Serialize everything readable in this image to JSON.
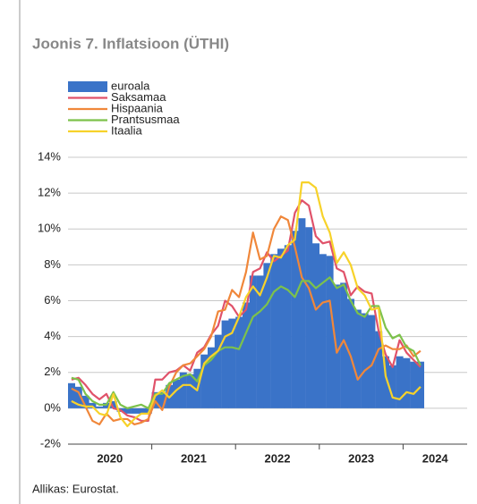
{
  "chart_data": {
    "type": "bar_line",
    "title": "Joonis 7. Inflatsioon (ÜTHI)",
    "source": "Allikas: Eurostat.",
    "xaxis_labels": [
      "2020",
      "2021",
      "2022",
      "2023",
      "2024"
    ],
    "categories": [
      null,
      null,
      null,
      null,
      null,
      null,
      null,
      null,
      null,
      null,
      null,
      null,
      null,
      null,
      null,
      null,
      null,
      null,
      null,
      null,
      null,
      null,
      null,
      null,
      null,
      null,
      null,
      null,
      null,
      null,
      null,
      null,
      null,
      null,
      null,
      null,
      null,
      null,
      null,
      null,
      null,
      null,
      null,
      null,
      null,
      null,
      null,
      null,
      null,
      null,
      null
    ],
    "series": [
      {
        "name": "euroala",
        "kind": "bar",
        "color": "#3a73c8",
        "values": [
          1.4,
          1.2,
          0.7,
          0.3,
          0.1,
          0.3,
          0.4,
          -0.2,
          -0.3,
          -0.3,
          -0.3,
          -0.3,
          0.9,
          0.9,
          1.3,
          1.6,
          2.0,
          1.9,
          2.2,
          3.0,
          3.4,
          4.1,
          4.9,
          5.0,
          5.1,
          5.9,
          7.4,
          7.4,
          8.1,
          8.6,
          8.9,
          9.1,
          9.9,
          10.6,
          10.1,
          9.2,
          8.6,
          8.5,
          6.9,
          7.0,
          6.1,
          5.5,
          5.3,
          5.2,
          4.3,
          2.9,
          2.4,
          2.9,
          2.8,
          2.6,
          2.6
        ]
      },
      {
        "name": "Saksamaa",
        "kind": "line",
        "color": "#e0526a",
        "values": [
          1.6,
          1.7,
          1.3,
          0.8,
          0.5,
          0.8,
          0.0,
          -0.1,
          -0.4,
          -0.5,
          -0.7,
          -0.7,
          1.6,
          1.6,
          2.0,
          2.1,
          2.4,
          2.1,
          3.1,
          3.4,
          4.1,
          4.6,
          6.0,
          5.7,
          5.1,
          5.5,
          7.6,
          7.8,
          8.7,
          8.2,
          8.5,
          8.8,
          10.9,
          11.6,
          11.3,
          9.6,
          9.2,
          9.3,
          7.8,
          7.6,
          6.3,
          6.8,
          6.5,
          6.4,
          4.3,
          3.0,
          2.3,
          3.8,
          3.1,
          2.7,
          2.3
        ]
      },
      {
        "name": "Hispaania",
        "kind": "line",
        "color": "#f0873a",
        "values": [
          1.1,
          0.9,
          0.1,
          -0.7,
          -0.9,
          -0.3,
          -0.7,
          -0.6,
          -0.6,
          -0.9,
          -0.8,
          -0.6,
          0.4,
          -0.1,
          1.2,
          2.0,
          2.4,
          2.5,
          2.9,
          3.3,
          4.0,
          5.4,
          5.5,
          6.6,
          6.2,
          7.6,
          9.8,
          8.3,
          8.5,
          10.0,
          10.7,
          10.5,
          9.0,
          7.3,
          6.7,
          5.5,
          5.9,
          6.0,
          3.1,
          3.8,
          2.9,
          1.6,
          2.1,
          2.4,
          3.3,
          3.5,
          3.3,
          3.3,
          3.5,
          2.9,
          3.2
        ]
      },
      {
        "name": "Prantsusmaa",
        "kind": "line",
        "color": "#7dc24b",
        "values": [
          1.7,
          1.6,
          0.8,
          0.4,
          0.2,
          0.2,
          0.9,
          0.2,
          0.0,
          0.1,
          0.2,
          0.0,
          0.8,
          0.8,
          1.4,
          1.6,
          1.8,
          1.9,
          1.5,
          2.4,
          2.7,
          3.2,
          3.4,
          3.4,
          3.3,
          4.2,
          5.1,
          5.4,
          5.8,
          6.5,
          6.8,
          6.6,
          6.2,
          7.1,
          7.1,
          6.7,
          7.0,
          7.3,
          6.7,
          6.9,
          6.0,
          5.3,
          5.1,
          5.7,
          5.7,
          4.5,
          3.9,
          4.1,
          3.4,
          3.2,
          2.4
        ]
      },
      {
        "name": "Itaalia",
        "kind": "line",
        "color": "#f7d22a",
        "values": [
          0.4,
          0.2,
          0.1,
          0.1,
          -0.3,
          -0.4,
          0.8,
          -0.5,
          -1.0,
          -0.6,
          -0.3,
          -0.3,
          0.7,
          1.0,
          0.6,
          1.0,
          1.3,
          1.3,
          1.0,
          2.5,
          2.9,
          3.2,
          4.0,
          4.2,
          5.1,
          6.2,
          6.8,
          6.3,
          7.3,
          8.5,
          8.4,
          9.1,
          9.4,
          12.6,
          12.6,
          12.3,
          10.7,
          9.8,
          8.1,
          8.7,
          8.0,
          6.7,
          6.3,
          5.5,
          5.6,
          1.8,
          0.6,
          0.5,
          0.9,
          0.8,
          1.2
        ]
      }
    ],
    "ylim": [
      -2,
      14
    ],
    "yticks": [
      {
        "value": -2,
        "label": "-2%"
      },
      {
        "value": 0,
        "label": "0%"
      },
      {
        "value": 2,
        "label": "2%"
      },
      {
        "value": 4,
        "label": "4%"
      },
      {
        "value": 6,
        "label": "6%"
      },
      {
        "value": 8,
        "label": "8%"
      },
      {
        "value": 10,
        "label": "10%"
      },
      {
        "value": 12,
        "label": "12%"
      },
      {
        "value": 14,
        "label": "14%"
      }
    ],
    "grid": true
  }
}
